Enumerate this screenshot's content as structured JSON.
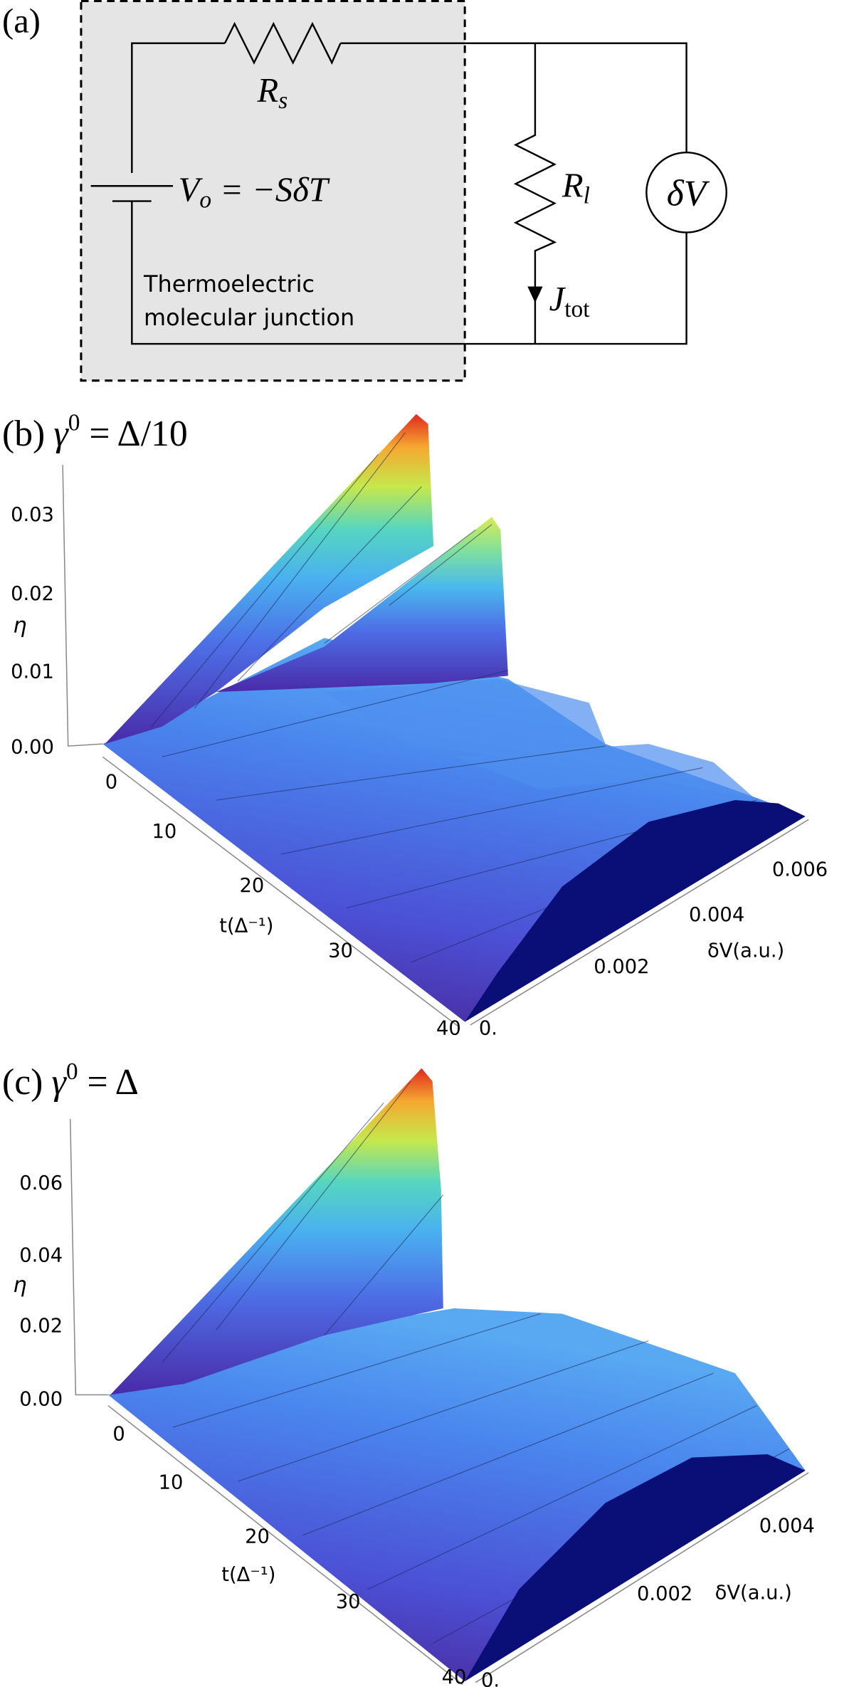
{
  "panels": [
    {
      "label": "(a)",
      "circuit": {
        "source_resistor": {
          "symbol": "R",
          "subscript": "s"
        },
        "source_voltage": {
          "symbol": "V",
          "subscript": "o",
          "rest": " = −SδT"
        },
        "load_resistor": {
          "symbol": "R",
          "subscript": "l"
        },
        "current": {
          "symbol": "J",
          "subscript": "tot"
        },
        "voltmeter": "δV",
        "box_label": [
          "Thermoelectric",
          "molecular junction"
        ]
      }
    },
    {
      "label": "(b)",
      "title": {
        "symbol": "γ",
        "superscript": "0",
        "rest": " = Δ/10"
      },
      "z_axis": {
        "label": "η",
        "ticks": [
          "0.03",
          "0.02",
          "0.01",
          "0.00"
        ]
      },
      "t_axis": {
        "label": "t(Δ⁻¹)",
        "ticks": [
          "0",
          "10",
          "20",
          "30",
          "40"
        ]
      },
      "v_axis": {
        "label": "δV(a.u.)",
        "ticks": [
          "0.",
          "0.002",
          "0.004",
          "0.006"
        ]
      }
    },
    {
      "label": "(c)",
      "title": {
        "symbol": "γ",
        "superscript": "0",
        "rest": " = Δ"
      },
      "z_axis": {
        "label": "η",
        "ticks": [
          "0.06",
          "0.04",
          "0.02",
          "0.00"
        ]
      },
      "t_axis": {
        "label": "t(Δ⁻¹)",
        "ticks": [
          "0",
          "10",
          "20",
          "30",
          "40"
        ]
      },
      "v_axis": {
        "label": "δV(a.u.)",
        "ticks": [
          "0.",
          "0.002",
          "0.004"
        ]
      }
    }
  ]
}
